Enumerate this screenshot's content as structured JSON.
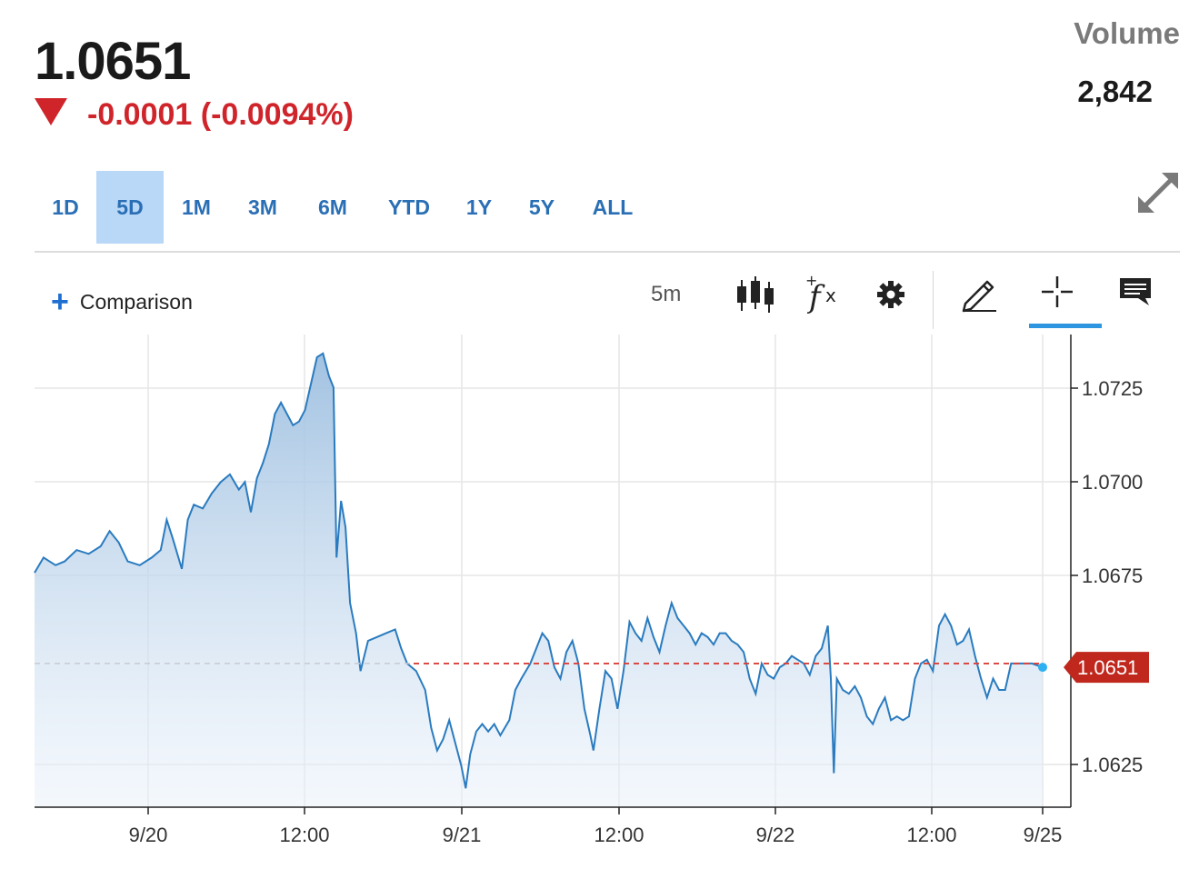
{
  "quote": {
    "price": "1.0651",
    "change": "-0.0001 (-0.0094%)",
    "volume_label": "Volume",
    "volume_value": "2,842"
  },
  "ranges": [
    {
      "label": "1D",
      "active": false
    },
    {
      "label": "5D",
      "active": true
    },
    {
      "label": "1M",
      "active": false
    },
    {
      "label": "3M",
      "active": false
    },
    {
      "label": "6M",
      "active": false
    },
    {
      "label": "YTD",
      "active": false
    },
    {
      "label": "1Y",
      "active": false
    },
    {
      "label": "5Y",
      "active": false
    },
    {
      "label": "ALL",
      "active": false
    }
  ],
  "toolbar": {
    "comparison_label": "Comparison",
    "interval": "5m",
    "icons": [
      "candlestick-icon",
      "indicator-fx-icon",
      "settings-gear-icon",
      "draw-pencil-icon",
      "crosshair-icon",
      "comment-icon",
      "expand-icon"
    ]
  },
  "colors": {
    "line": "#2a7bbf",
    "down": "#d0242b",
    "last_price_tag": "#c0281d",
    "range_active_bg": "#b9d7f7",
    "last_point": "#2eb1f0"
  },
  "chart_data": {
    "type": "area",
    "x_tick_labels": [
      "9/20",
      "12:00",
      "9/21",
      "12:00",
      "9/22",
      "12:00",
      "9/25"
    ],
    "y_tick_labels": [
      "1.0725",
      "1.0700",
      "1.0675",
      "1.0625"
    ],
    "ylim": [
      1.0614,
      1.0739
    ],
    "reference_line": 1.0652,
    "last_price_label": "1.0651",
    "last_value": 1.0651,
    "grid": true,
    "series": [
      {
        "points": [
          [
            0.0,
            1.0676
          ],
          [
            0.3,
            1.068
          ],
          [
            0.7,
            1.0678
          ],
          [
            1.0,
            1.0679
          ],
          [
            1.4,
            1.0682
          ],
          [
            1.8,
            1.0681
          ],
          [
            2.2,
            1.0683
          ],
          [
            2.5,
            1.0687
          ],
          [
            2.8,
            1.0684
          ],
          [
            3.1,
            1.0679
          ],
          [
            3.5,
            1.0678
          ],
          [
            3.9,
            1.068
          ],
          [
            4.2,
            1.0682
          ],
          [
            4.4,
            1.069
          ],
          [
            4.6,
            1.0685
          ],
          [
            4.9,
            1.0677
          ],
          [
            5.1,
            1.069
          ],
          [
            5.3,
            1.0694
          ],
          [
            5.6,
            1.0693
          ],
          [
            5.9,
            1.0697
          ],
          [
            6.2,
            1.07
          ],
          [
            6.5,
            1.0702
          ],
          [
            6.8,
            1.0698
          ],
          [
            7.0,
            1.07
          ],
          [
            7.2,
            1.0692
          ],
          [
            7.4,
            1.0701
          ],
          [
            7.6,
            1.0705
          ],
          [
            7.8,
            1.071
          ],
          [
            8.0,
            1.0718
          ],
          [
            8.2,
            1.0721
          ],
          [
            8.4,
            1.0718
          ],
          [
            8.6,
            1.0715
          ],
          [
            8.8,
            1.0716
          ],
          [
            9.0,
            1.0719
          ],
          [
            9.2,
            1.0726
          ],
          [
            9.4,
            1.0733
          ],
          [
            9.6,
            1.0734
          ],
          [
            9.8,
            1.0728
          ],
          [
            9.95,
            1.0725
          ],
          [
            10.05,
            1.068
          ],
          [
            10.2,
            1.0695
          ],
          [
            10.35,
            1.0688
          ],
          [
            10.5,
            1.0668
          ],
          [
            10.7,
            1.066
          ],
          [
            10.85,
            1.065
          ],
          [
            11.1,
            1.0658
          ],
          [
            11.4,
            1.0659
          ],
          [
            11.7,
            1.066
          ],
          [
            12.0,
            1.0661
          ],
          [
            12.2,
            1.0656
          ],
          [
            12.4,
            1.0652
          ],
          [
            12.7,
            1.065
          ],
          [
            13.0,
            1.0645
          ],
          [
            13.2,
            1.0635
          ],
          [
            13.4,
            1.0629
          ],
          [
            13.6,
            1.0632
          ],
          [
            13.8,
            1.0637
          ],
          [
            14.0,
            1.0631
          ],
          [
            14.2,
            1.0625
          ],
          [
            14.35,
            1.0619
          ],
          [
            14.5,
            1.0628
          ],
          [
            14.7,
            1.0634
          ],
          [
            14.9,
            1.0636
          ],
          [
            15.1,
            1.0634
          ],
          [
            15.3,
            1.0636
          ],
          [
            15.5,
            1.0633
          ],
          [
            15.8,
            1.0637
          ],
          [
            16.0,
            1.0645
          ],
          [
            16.2,
            1.0648
          ],
          [
            16.5,
            1.0652
          ],
          [
            16.7,
            1.0656
          ],
          [
            16.9,
            1.066
          ],
          [
            17.1,
            1.0658
          ],
          [
            17.3,
            1.0651
          ],
          [
            17.5,
            1.0648
          ],
          [
            17.7,
            1.0655
          ],
          [
            17.9,
            1.0658
          ],
          [
            18.1,
            1.0652
          ],
          [
            18.3,
            1.064
          ],
          [
            18.5,
            1.0633
          ],
          [
            18.6,
            1.0629
          ],
          [
            18.8,
            1.064
          ],
          [
            19.0,
            1.065
          ],
          [
            19.2,
            1.0648
          ],
          [
            19.4,
            1.064
          ],
          [
            19.6,
            1.065
          ],
          [
            19.8,
            1.0663
          ],
          [
            20.0,
            1.066
          ],
          [
            20.2,
            1.0658
          ],
          [
            20.4,
            1.0664
          ],
          [
            20.6,
            1.0659
          ],
          [
            20.8,
            1.0655
          ],
          [
            21.0,
            1.0662
          ],
          [
            21.2,
            1.0668
          ],
          [
            21.4,
            1.0664
          ],
          [
            21.6,
            1.0662
          ],
          [
            21.8,
            1.066
          ],
          [
            22.0,
            1.0657
          ],
          [
            22.2,
            1.066
          ],
          [
            22.4,
            1.0659
          ],
          [
            22.6,
            1.0657
          ],
          [
            22.8,
            1.066
          ],
          [
            23.0,
            1.066
          ],
          [
            23.2,
            1.0658
          ],
          [
            23.4,
            1.0657
          ],
          [
            23.6,
            1.0655
          ],
          [
            23.8,
            1.0648
          ],
          [
            24.0,
            1.0644
          ],
          [
            24.2,
            1.0652
          ],
          [
            24.4,
            1.0649
          ],
          [
            24.6,
            1.0648
          ],
          [
            24.8,
            1.0651
          ],
          [
            25.0,
            1.0652
          ],
          [
            25.2,
            1.0654
          ],
          [
            25.4,
            1.0653
          ],
          [
            25.6,
            1.0652
          ],
          [
            25.8,
            1.0649
          ],
          [
            26.0,
            1.0654
          ],
          [
            26.2,
            1.0656
          ],
          [
            26.4,
            1.0662
          ],
          [
            26.5,
            1.0648
          ],
          [
            26.6,
            1.0623
          ],
          [
            26.7,
            1.0648
          ],
          [
            26.9,
            1.0645
          ],
          [
            27.1,
            1.0644
          ],
          [
            27.3,
            1.0646
          ],
          [
            27.5,
            1.0643
          ],
          [
            27.7,
            1.0638
          ],
          [
            27.9,
            1.0636
          ],
          [
            28.1,
            1.064
          ],
          [
            28.3,
            1.0643
          ],
          [
            28.5,
            1.0637
          ],
          [
            28.7,
            1.0638
          ],
          [
            28.9,
            1.0637
          ],
          [
            29.1,
            1.0638
          ],
          [
            29.3,
            1.0648
          ],
          [
            29.5,
            1.0652
          ],
          [
            29.7,
            1.0653
          ],
          [
            29.9,
            1.065
          ],
          [
            30.1,
            1.0662
          ],
          [
            30.3,
            1.0665
          ],
          [
            30.5,
            1.0662
          ],
          [
            30.7,
            1.0657
          ],
          [
            30.9,
            1.0658
          ],
          [
            31.1,
            1.0661
          ],
          [
            31.3,
            1.0654
          ],
          [
            31.5,
            1.0648
          ],
          [
            31.7,
            1.0643
          ],
          [
            31.9,
            1.0648
          ],
          [
            32.1,
            1.0645
          ],
          [
            32.3,
            1.0645
          ],
          [
            32.5,
            1.0652
          ],
          [
            32.8,
            1.0652
          ],
          [
            33.2,
            1.0652
          ],
          [
            33.55,
            1.0651
          ]
        ]
      }
    ]
  }
}
